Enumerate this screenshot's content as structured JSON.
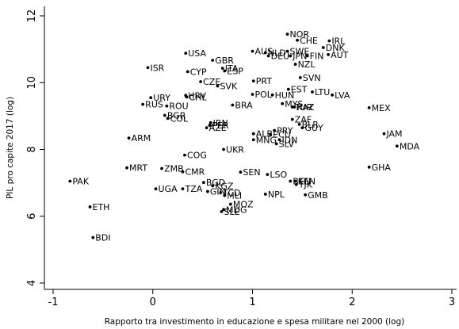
{
  "chart_data": {
    "type": "scatter",
    "title": "",
    "xlabel": "Rapporto tra investimento in educazione e spesa militare nel 2000 (log)",
    "ylabel": "PIL pro capite 2017 (log)",
    "xlim": [
      -1.15,
      3.05
    ],
    "ylim": [
      3.75,
      12.25
    ],
    "xticks": [
      -1,
      0,
      1,
      2,
      3
    ],
    "yticks": [
      4,
      6,
      8,
      10,
      12
    ],
    "grid": false,
    "points": [
      {
        "label": "NOR",
        "x": 1.35,
        "y": 11.45
      },
      {
        "label": "CHE",
        "x": 1.45,
        "y": 11.27
      },
      {
        "label": "IRL",
        "x": 1.77,
        "y": 11.25
      },
      {
        "label": "DNK",
        "x": 1.71,
        "y": 11.05
      },
      {
        "label": "AUS",
        "x": 1.0,
        "y": 10.94
      },
      {
        "label": "SWE",
        "x": 1.35,
        "y": 10.94
      },
      {
        "label": "AUT",
        "x": 1.76,
        "y": 10.84
      },
      {
        "label": "NLD",
        "x": 1.13,
        "y": 10.9
      },
      {
        "label": "DEU",
        "x": 1.16,
        "y": 10.8
      },
      {
        "label": "JPN",
        "x": 1.38,
        "y": 10.8
      },
      {
        "label": "FIN",
        "x": 1.55,
        "y": 10.8
      },
      {
        "label": "USA",
        "x": 0.33,
        "y": 10.88
      },
      {
        "label": "GBR",
        "x": 0.6,
        "y": 10.67
      },
      {
        "label": "NZL",
        "x": 1.43,
        "y": 10.55
      },
      {
        "label": "ISR",
        "x": -0.05,
        "y": 10.45
      },
      {
        "label": "CYP",
        "x": 0.35,
        "y": 10.33
      },
      {
        "label": "ITA",
        "x": 0.7,
        "y": 10.43
      },
      {
        "label": "ESP",
        "x": 0.72,
        "y": 10.35
      },
      {
        "label": "SVN",
        "x": 1.48,
        "y": 10.15
      },
      {
        "label": "CZE",
        "x": 0.48,
        "y": 10.03
      },
      {
        "label": "PRT",
        "x": 1.01,
        "y": 10.05
      },
      {
        "label": "SVK",
        "x": 0.65,
        "y": 9.9
      },
      {
        "label": "EST",
        "x": 1.36,
        "y": 9.8
      },
      {
        "label": "LTU",
        "x": 1.6,
        "y": 9.72
      },
      {
        "label": "LVA",
        "x": 1.8,
        "y": 9.63
      },
      {
        "label": "POL",
        "x": 1.0,
        "y": 9.65
      },
      {
        "label": "HUN",
        "x": 1.2,
        "y": 9.63
      },
      {
        "label": "URY",
        "x": -0.02,
        "y": 9.55
      },
      {
        "label": "HRV",
        "x": 0.33,
        "y": 9.62
      },
      {
        "label": "CHL",
        "x": 0.34,
        "y": 9.57
      },
      {
        "label": "MEX",
        "x": 2.17,
        "y": 9.25
      },
      {
        "label": "MYS",
        "x": 1.3,
        "y": 9.37
      },
      {
        "label": "KAZ",
        "x": 1.42,
        "y": 9.27
      },
      {
        "label": "TUR",
        "x": 1.4,
        "y": 9.27
      },
      {
        "label": "RUS",
        "x": -0.1,
        "y": 9.35
      },
      {
        "label": "ROU",
        "x": 0.14,
        "y": 9.3
      },
      {
        "label": "BRA",
        "x": 0.8,
        "y": 9.33
      },
      {
        "label": "BGR",
        "x": 0.12,
        "y": 9.02
      },
      {
        "label": "COL",
        "x": 0.15,
        "y": 8.93
      },
      {
        "label": "ZAF",
        "x": 1.4,
        "y": 8.9
      },
      {
        "label": "IRN",
        "x": 0.58,
        "y": 8.8
      },
      {
        "label": "PER",
        "x": 0.57,
        "y": 8.72
      },
      {
        "label": "BLR",
        "x": 1.47,
        "y": 8.75
      },
      {
        "label": "GUY",
        "x": 1.5,
        "y": 8.65
      },
      {
        "label": "AZE",
        "x": 0.54,
        "y": 8.65
      },
      {
        "label": "PRY",
        "x": 1.22,
        "y": 8.57
      },
      {
        "label": "JAM",
        "x": 2.32,
        "y": 8.47
      },
      {
        "label": "ALB",
        "x": 1.01,
        "y": 8.47
      },
      {
        "label": "ECU",
        "x": 1.18,
        "y": 8.45
      },
      {
        "label": "MNG",
        "x": 1.01,
        "y": 8.29
      },
      {
        "label": "IDN",
        "x": 1.27,
        "y": 8.29
      },
      {
        "label": "MDA",
        "x": 2.45,
        "y": 8.1
      },
      {
        "label": "SLV",
        "x": 1.24,
        "y": 8.17
      },
      {
        "label": "ARM",
        "x": -0.24,
        "y": 8.34
      },
      {
        "label": "UKR",
        "x": 0.71,
        "y": 8.0
      },
      {
        "label": "COG",
        "x": 0.32,
        "y": 7.83
      },
      {
        "label": "GHA",
        "x": 2.17,
        "y": 7.47
      },
      {
        "label": "MRT",
        "x": -0.26,
        "y": 7.45
      },
      {
        "label": "ZMB",
        "x": 0.09,
        "y": 7.43
      },
      {
        "label": "CMR",
        "x": 0.3,
        "y": 7.33
      },
      {
        "label": "SEN",
        "x": 0.88,
        "y": 7.32
      },
      {
        "label": "LSO",
        "x": 1.15,
        "y": 7.25
      },
      {
        "label": "BEN",
        "x": 1.38,
        "y": 7.05
      },
      {
        "label": "KEN",
        "x": 1.43,
        "y": 7.05
      },
      {
        "label": "TJK",
        "x": 1.44,
        "y": 6.95
      },
      {
        "label": "PAK",
        "x": -0.83,
        "y": 7.05
      },
      {
        "label": "BGD",
        "x": 0.51,
        "y": 7.01
      },
      {
        "label": "KGZ",
        "x": 0.6,
        "y": 6.91
      },
      {
        "label": "UGA",
        "x": 0.03,
        "y": 6.82
      },
      {
        "label": "TZA",
        "x": 0.3,
        "y": 6.82
      },
      {
        "label": "GIN",
        "x": 0.55,
        "y": 6.74
      },
      {
        "label": "TCD",
        "x": 0.68,
        "y": 6.71
      },
      {
        "label": "MLI",
        "x": 0.72,
        "y": 6.62
      },
      {
        "label": "NPL",
        "x": 1.13,
        "y": 6.66
      },
      {
        "label": "GMB",
        "x": 1.53,
        "y": 6.64
      },
      {
        "label": "MOZ",
        "x": 0.78,
        "y": 6.36
      },
      {
        "label": "ETH",
        "x": -0.63,
        "y": 6.28
      },
      {
        "label": "MDG",
        "x": 0.71,
        "y": 6.2
      },
      {
        "label": "SLE",
        "x": 0.69,
        "y": 6.14
      },
      {
        "label": "BDI",
        "x": -0.6,
        "y": 5.36
      }
    ]
  }
}
